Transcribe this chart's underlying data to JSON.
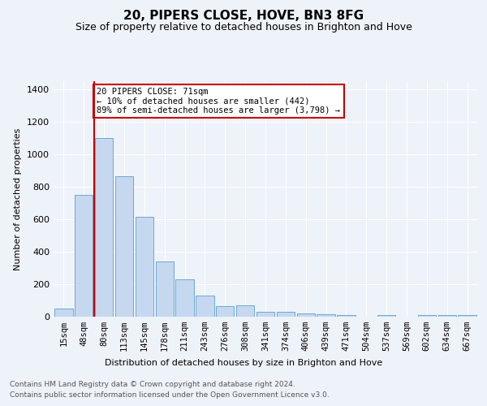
{
  "title": "20, PIPERS CLOSE, HOVE, BN3 8FG",
  "subtitle": "Size of property relative to detached houses in Brighton and Hove",
  "xlabel": "Distribution of detached houses by size in Brighton and Hove",
  "ylabel": "Number of detached properties",
  "footnote1": "Contains HM Land Registry data © Crown copyright and database right 2024.",
  "footnote2": "Contains public sector information licensed under the Open Government Licence v3.0.",
  "annotation_line1": "20 PIPERS CLOSE: 71sqm",
  "annotation_line2": "← 10% of detached houses are smaller (442)",
  "annotation_line3": "89% of semi-detached houses are larger (3,798) →",
  "bar_color": "#c5d8f0",
  "bar_edge_color": "#6aaad4",
  "vline_color": "#cc0000",
  "categories": [
    "15sqm",
    "48sqm",
    "80sqm",
    "113sqm",
    "145sqm",
    "178sqm",
    "211sqm",
    "243sqm",
    "276sqm",
    "308sqm",
    "341sqm",
    "374sqm",
    "406sqm",
    "439sqm",
    "471sqm",
    "504sqm",
    "537sqm",
    "569sqm",
    "602sqm",
    "634sqm",
    "667sqm"
  ],
  "values": [
    48,
    752,
    1100,
    865,
    615,
    340,
    228,
    130,
    65,
    68,
    28,
    28,
    20,
    15,
    10,
    0,
    10,
    0,
    10,
    10,
    10
  ],
  "vline_x_index": 2,
  "ylim": [
    0,
    1450
  ],
  "yticks": [
    0,
    200,
    400,
    600,
    800,
    1000,
    1200,
    1400
  ],
  "bg_color": "#eef2f9",
  "grid_color": "#ffffff",
  "annotation_box_color": "#ffffff",
  "annotation_box_edge": "#cc0000",
  "title_fontsize": 11,
  "subtitle_fontsize": 9,
  "ylabel_fontsize": 8,
  "xlabel_fontsize": 8,
  "tick_fontsize": 7.5,
  "footnote_fontsize": 6.5
}
